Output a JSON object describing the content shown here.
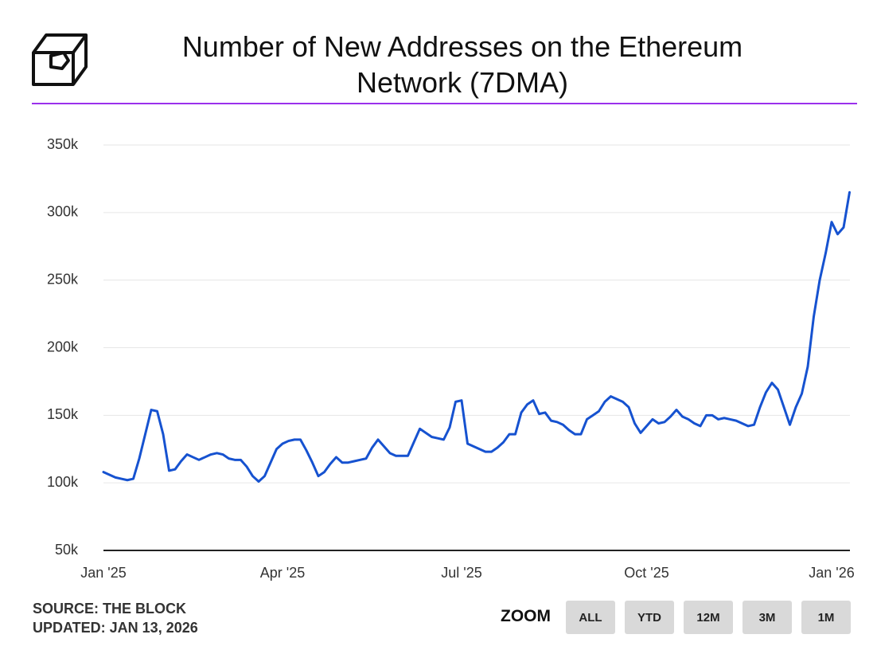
{
  "chart_data": {
    "type": "line",
    "title": "Number of New Addresses on the Ethereum Network (7DMA)",
    "categories": [
      "Jan '25",
      null,
      null,
      null,
      null,
      null,
      null,
      null,
      null,
      null,
      null,
      null,
      null,
      null,
      null,
      null,
      null,
      null,
      null,
      null,
      null,
      null,
      null,
      null,
      null,
      null,
      null,
      null,
      null,
      null,
      "Apr '25",
      null,
      null,
      null,
      null,
      null,
      null,
      null,
      null,
      null,
      null,
      null,
      null,
      null,
      null,
      null,
      null,
      null,
      null,
      null,
      null,
      null,
      null,
      null,
      null,
      null,
      null,
      null,
      null,
      null,
      "Jul '25",
      null,
      null,
      null,
      null,
      null,
      null,
      null,
      null,
      null,
      null,
      null,
      null,
      null,
      null,
      null,
      null,
      null,
      null,
      null,
      null,
      null,
      null,
      null,
      null,
      null,
      null,
      null,
      null,
      null,
      null,
      "Oct '25",
      null,
      null,
      null,
      null,
      null,
      null,
      null,
      null,
      null,
      null,
      null,
      null,
      null,
      null,
      null,
      null,
      null,
      null,
      null,
      null,
      null,
      null,
      null,
      null,
      null,
      null,
      null,
      null,
      null,
      null,
      "Jan '26",
      null,
      null,
      null
    ],
    "values": [
      108000,
      106000,
      104000,
      103000,
      102000,
      103000,
      118000,
      136000,
      154000,
      153000,
      136000,
      109000,
      110000,
      116000,
      121000,
      119000,
      117000,
      119000,
      121000,
      122000,
      121000,
      118000,
      117000,
      117000,
      112000,
      105000,
      101000,
      105000,
      115000,
      125000,
      129000,
      131000,
      132000,
      132000,
      124000,
      115000,
      105000,
      108000,
      114000,
      119000,
      115000,
      115000,
      116000,
      117000,
      118000,
      126000,
      132000,
      127000,
      122000,
      120000,
      120000,
      120000,
      130000,
      140000,
      137000,
      134000,
      133000,
      132000,
      141000,
      160000,
      161000,
      129000,
      127000,
      125000,
      123000,
      123000,
      126000,
      130000,
      136000,
      136000,
      152000,
      158000,
      161000,
      151000,
      152000,
      146000,
      145000,
      143000,
      139000,
      136000,
      136000,
      147000,
      150000,
      153000,
      160000,
      164000,
      162000,
      160000,
      156000,
      144000,
      137000,
      142000,
      147000,
      144000,
      145000,
      149000,
      154000,
      149000,
      147000,
      144000,
      142000,
      150000,
      150000,
      147000,
      148000,
      147000,
      146000,
      144000,
      142000,
      143000,
      156000,
      167000,
      174000,
      169000,
      156000,
      143000,
      156000,
      166000,
      186000,
      223000,
      250000,
      270000,
      293000,
      284000,
      289000,
      315000
    ],
    "color": "#1652d0",
    "ylim": [
      50000,
      350000
    ],
    "yticks": [
      {
        "value": 50000,
        "label": "50k"
      },
      {
        "value": 100000,
        "label": "100k"
      },
      {
        "value": 150000,
        "label": "150k"
      },
      {
        "value": 200000,
        "label": "200k"
      },
      {
        "value": 250000,
        "label": "250k"
      },
      {
        "value": 300000,
        "label": "300k"
      },
      {
        "value": 350000,
        "label": "350k"
      }
    ],
    "grid": true
  },
  "source": "SOURCE: THE BLOCK",
  "updated": "UPDATED: JAN 13, 2026",
  "zoom": {
    "label": "ZOOM",
    "buttons": [
      "ALL",
      "YTD",
      "12M",
      "3M",
      "1M"
    ]
  }
}
